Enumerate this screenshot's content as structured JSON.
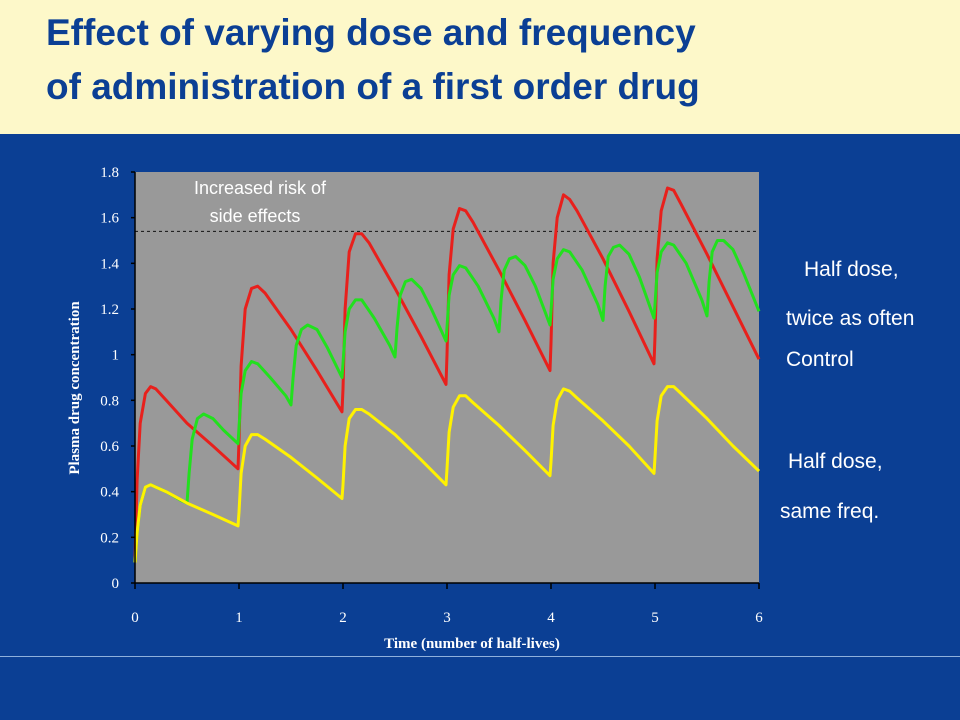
{
  "slide": {
    "title_line1": "Effect of varying dose and frequency",
    "title_line2": "of administration of a first order drug"
  },
  "colors": {
    "background": "#0b3f94",
    "title_band": "#fdf8c9",
    "title_text": "#0b3f94",
    "plot_area": "#999999",
    "control": "#e8201c",
    "half_dose_twice": "#22e01e",
    "half_dose_same": "#fff200"
  },
  "chart_data": {
    "type": "line",
    "title": "",
    "xlabel": "Time (number of half-lives)",
    "ylabel": "Plasma drug concentration",
    "xlim": [
      0,
      6
    ],
    "ylim": [
      0,
      1.8
    ],
    "x_ticks": [
      "0",
      "1",
      "2",
      "3",
      "4",
      "5",
      "6"
    ],
    "y_ticks": [
      "0",
      "0.2",
      "0.4",
      "0.6",
      "0.8",
      "1",
      "1.2",
      "1.4",
      "1.6",
      "1.8"
    ],
    "grid": false,
    "threshold": {
      "y": 1.54,
      "label_line1": "Increased risk of",
      "label_line2": "side effects"
    },
    "series_labels": {
      "half_dose_twice_line1": "Half dose,",
      "half_dose_twice_line2": "twice as often",
      "control": "Control",
      "half_dose_same_line1": "Half dose,",
      "half_dose_same_line2": "same freq."
    },
    "series": [
      {
        "key": "control",
        "color": "#e8201c",
        "points": [
          [
            0.0,
            0.1
          ],
          [
            0.02,
            0.45
          ],
          [
            0.05,
            0.7
          ],
          [
            0.1,
            0.83
          ],
          [
            0.15,
            0.86
          ],
          [
            0.2,
            0.85
          ],
          [
            0.3,
            0.8
          ],
          [
            0.5,
            0.7
          ],
          [
            0.75,
            0.6
          ],
          [
            0.99,
            0.5
          ],
          [
            1.0,
            0.62
          ],
          [
            1.02,
            0.95
          ],
          [
            1.06,
            1.2
          ],
          [
            1.12,
            1.29
          ],
          [
            1.18,
            1.3
          ],
          [
            1.25,
            1.27
          ],
          [
            1.5,
            1.11
          ],
          [
            1.75,
            0.93
          ],
          [
            1.99,
            0.75
          ],
          [
            2.0,
            0.85
          ],
          [
            2.02,
            1.2
          ],
          [
            2.06,
            1.45
          ],
          [
            2.12,
            1.53
          ],
          [
            2.18,
            1.53
          ],
          [
            2.25,
            1.49
          ],
          [
            2.5,
            1.29
          ],
          [
            2.75,
            1.08
          ],
          [
            2.99,
            0.87
          ],
          [
            3.0,
            1.0
          ],
          [
            3.02,
            1.35
          ],
          [
            3.06,
            1.55
          ],
          [
            3.12,
            1.64
          ],
          [
            3.18,
            1.63
          ],
          [
            3.25,
            1.58
          ],
          [
            3.5,
            1.37
          ],
          [
            3.75,
            1.15
          ],
          [
            3.99,
            0.93
          ],
          [
            4.0,
            1.05
          ],
          [
            4.02,
            1.4
          ],
          [
            4.06,
            1.6
          ],
          [
            4.12,
            1.7
          ],
          [
            4.18,
            1.68
          ],
          [
            4.25,
            1.63
          ],
          [
            4.5,
            1.42
          ],
          [
            4.75,
            1.19
          ],
          [
            4.99,
            0.96
          ],
          [
            5.0,
            1.08
          ],
          [
            5.02,
            1.42
          ],
          [
            5.06,
            1.63
          ],
          [
            5.12,
            1.73
          ],
          [
            5.18,
            1.72
          ],
          [
            5.25,
            1.66
          ],
          [
            5.5,
            1.44
          ],
          [
            5.75,
            1.21
          ],
          [
            6.0,
            0.98
          ]
        ]
      },
      {
        "key": "half_dose_twice",
        "color": "#22e01e",
        "points": [
          [
            0.0,
            0.09
          ],
          [
            0.02,
            0.22
          ],
          [
            0.05,
            0.34
          ],
          [
            0.1,
            0.42
          ],
          [
            0.15,
            0.43
          ],
          [
            0.2,
            0.42
          ],
          [
            0.3,
            0.4
          ],
          [
            0.45,
            0.36
          ],
          [
            0.5,
            0.35
          ],
          [
            0.52,
            0.48
          ],
          [
            0.55,
            0.63
          ],
          [
            0.6,
            0.72
          ],
          [
            0.66,
            0.74
          ],
          [
            0.75,
            0.72
          ],
          [
            0.85,
            0.67
          ],
          [
            0.99,
            0.61
          ],
          [
            1.0,
            0.68
          ],
          [
            1.02,
            0.83
          ],
          [
            1.06,
            0.93
          ],
          [
            1.12,
            0.97
          ],
          [
            1.18,
            0.96
          ],
          [
            1.3,
            0.9
          ],
          [
            1.45,
            0.82
          ],
          [
            1.5,
            0.78
          ],
          [
            1.52,
            0.9
          ],
          [
            1.55,
            1.04
          ],
          [
            1.6,
            1.11
          ],
          [
            1.66,
            1.13
          ],
          [
            1.75,
            1.11
          ],
          [
            1.85,
            1.03
          ],
          [
            1.99,
            0.9
          ],
          [
            2.0,
            0.96
          ],
          [
            2.02,
            1.1
          ],
          [
            2.06,
            1.2
          ],
          [
            2.12,
            1.24
          ],
          [
            2.18,
            1.24
          ],
          [
            2.3,
            1.16
          ],
          [
            2.45,
            1.04
          ],
          [
            2.5,
            0.99
          ],
          [
            2.52,
            1.12
          ],
          [
            2.55,
            1.26
          ],
          [
            2.6,
            1.32
          ],
          [
            2.66,
            1.33
          ],
          [
            2.75,
            1.29
          ],
          [
            2.85,
            1.2
          ],
          [
            2.99,
            1.06
          ],
          [
            3.0,
            1.12
          ],
          [
            3.02,
            1.26
          ],
          [
            3.06,
            1.35
          ],
          [
            3.12,
            1.39
          ],
          [
            3.18,
            1.38
          ],
          [
            3.3,
            1.3
          ],
          [
            3.45,
            1.16
          ],
          [
            3.5,
            1.1
          ],
          [
            3.52,
            1.24
          ],
          [
            3.55,
            1.37
          ],
          [
            3.6,
            1.42
          ],
          [
            3.66,
            1.43
          ],
          [
            3.75,
            1.39
          ],
          [
            3.85,
            1.3
          ],
          [
            3.99,
            1.13
          ],
          [
            4.0,
            1.19
          ],
          [
            4.02,
            1.33
          ],
          [
            4.06,
            1.42
          ],
          [
            4.12,
            1.46
          ],
          [
            4.18,
            1.45
          ],
          [
            4.3,
            1.37
          ],
          [
            4.45,
            1.22
          ],
          [
            4.5,
            1.15
          ],
          [
            4.52,
            1.3
          ],
          [
            4.55,
            1.43
          ],
          [
            4.6,
            1.47
          ],
          [
            4.66,
            1.48
          ],
          [
            4.75,
            1.44
          ],
          [
            4.85,
            1.34
          ],
          [
            4.99,
            1.16
          ],
          [
            5.0,
            1.22
          ],
          [
            5.02,
            1.36
          ],
          [
            5.06,
            1.45
          ],
          [
            5.12,
            1.49
          ],
          [
            5.18,
            1.48
          ],
          [
            5.3,
            1.4
          ],
          [
            5.45,
            1.24
          ],
          [
            5.5,
            1.17
          ],
          [
            5.52,
            1.32
          ],
          [
            5.55,
            1.45
          ],
          [
            5.6,
            1.5
          ],
          [
            5.66,
            1.5
          ],
          [
            5.75,
            1.46
          ],
          [
            5.85,
            1.36
          ],
          [
            6.0,
            1.19
          ]
        ]
      },
      {
        "key": "half_dose_same",
        "color": "#fff200",
        "points": [
          [
            0.0,
            0.09
          ],
          [
            0.02,
            0.22
          ],
          [
            0.05,
            0.34
          ],
          [
            0.1,
            0.42
          ],
          [
            0.15,
            0.43
          ],
          [
            0.2,
            0.42
          ],
          [
            0.3,
            0.4
          ],
          [
            0.5,
            0.35
          ],
          [
            0.75,
            0.3
          ],
          [
            0.99,
            0.25
          ],
          [
            1.0,
            0.31
          ],
          [
            1.02,
            0.48
          ],
          [
            1.06,
            0.6
          ],
          [
            1.12,
            0.65
          ],
          [
            1.18,
            0.65
          ],
          [
            1.25,
            0.63
          ],
          [
            1.5,
            0.55
          ],
          [
            1.75,
            0.46
          ],
          [
            1.99,
            0.37
          ],
          [
            2.0,
            0.43
          ],
          [
            2.02,
            0.6
          ],
          [
            2.06,
            0.72
          ],
          [
            2.12,
            0.76
          ],
          [
            2.18,
            0.76
          ],
          [
            2.25,
            0.74
          ],
          [
            2.5,
            0.65
          ],
          [
            2.75,
            0.54
          ],
          [
            2.99,
            0.43
          ],
          [
            3.0,
            0.5
          ],
          [
            3.02,
            0.66
          ],
          [
            3.06,
            0.77
          ],
          [
            3.12,
            0.82
          ],
          [
            3.18,
            0.82
          ],
          [
            3.25,
            0.79
          ],
          [
            3.5,
            0.69
          ],
          [
            3.75,
            0.58
          ],
          [
            3.99,
            0.47
          ],
          [
            4.0,
            0.53
          ],
          [
            4.02,
            0.69
          ],
          [
            4.06,
            0.8
          ],
          [
            4.12,
            0.85
          ],
          [
            4.18,
            0.84
          ],
          [
            4.25,
            0.81
          ],
          [
            4.5,
            0.71
          ],
          [
            4.75,
            0.6
          ],
          [
            4.99,
            0.48
          ],
          [
            5.0,
            0.55
          ],
          [
            5.02,
            0.71
          ],
          [
            5.06,
            0.82
          ],
          [
            5.12,
            0.86
          ],
          [
            5.18,
            0.86
          ],
          [
            5.25,
            0.83
          ],
          [
            5.5,
            0.72
          ],
          [
            5.75,
            0.6
          ],
          [
            6.0,
            0.49
          ]
        ]
      }
    ]
  }
}
